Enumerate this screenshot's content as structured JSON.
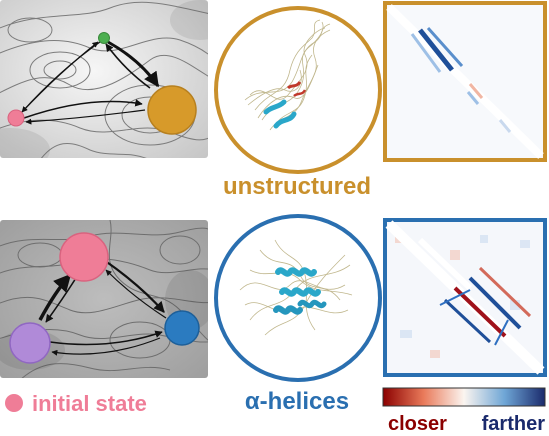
{
  "labels": {
    "top_state": "unstructured",
    "bottom_state": "α-helices",
    "legend_text": "initial state",
    "colorbar_left": "closer",
    "colorbar_right": "farther"
  },
  "colors": {
    "green": "#4caf50",
    "orange": "#d79a2a",
    "pink": "#ef7d97",
    "purple": "#b08ad8",
    "blue": "#2b7bc0",
    "orange_border": "#c9902c",
    "blue_border": "#2a6fb0",
    "dark_red": "#8b0000",
    "dark_blue": "#1a2a6c"
  },
  "icons": [
    "pink-dot-icon"
  ]
}
